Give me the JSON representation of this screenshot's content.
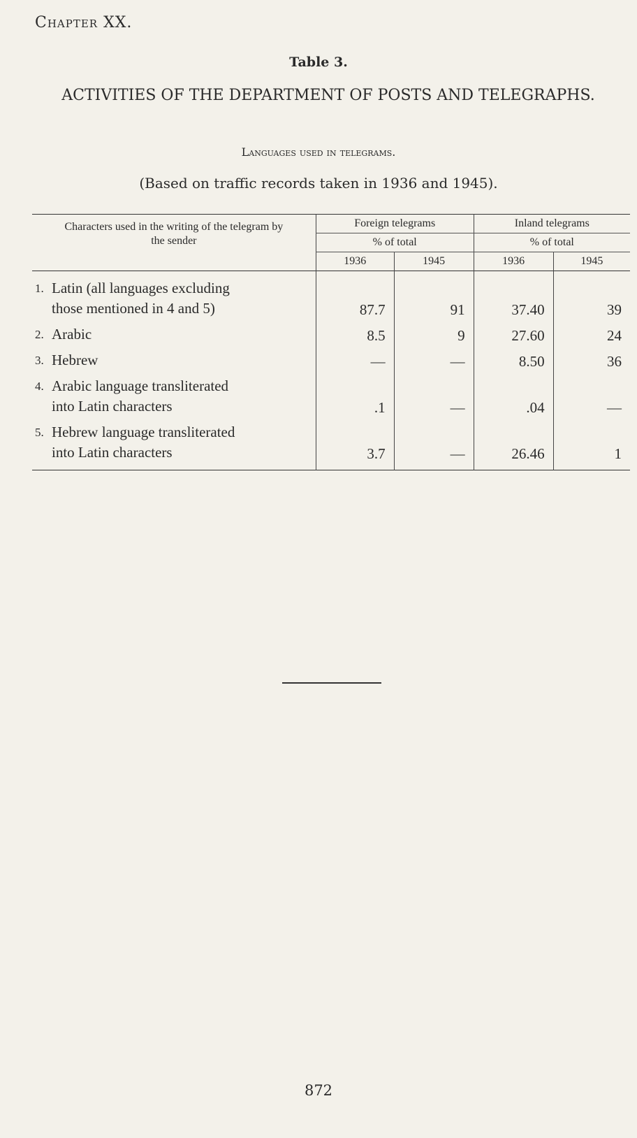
{
  "chapter": "Chapter XX.",
  "table_number": "Table 3.",
  "title": "ACTIVITIES OF THE DEPARTMENT OF POSTS AND TELEGRAPHS.",
  "subtitle": "Languages used in telegrams.",
  "note": "(Based on traffic records taken in 1936 and 1945).",
  "table": {
    "stub_header": "Characters used in the writing of the telegram by the sender",
    "groups": [
      "Foreign telegrams",
      "Inland telegrams"
    ],
    "subheader": "% of total",
    "years": [
      "1936",
      "1945",
      "1936",
      "1945"
    ],
    "rows": [
      {
        "no": "1.",
        "label": "Latin (all languages excluding those mentioned in 4 and 5)",
        "values": [
          "87.7",
          "91",
          "37.40",
          "39"
        ]
      },
      {
        "no": "2.",
        "label": "Arabic",
        "values": [
          "8.5",
          "9",
          "27.60",
          "24"
        ]
      },
      {
        "no": "3.",
        "label": "Hebrew",
        "values": [
          "—",
          "—",
          "8.50",
          "36"
        ]
      },
      {
        "no": "4.",
        "label": "Arabic language transliterated into Latin characters",
        "values": [
          ".1",
          "—",
          ".04",
          "—"
        ]
      },
      {
        "no": "5.",
        "label": "Hebrew language transliterated into Latin characters",
        "values": [
          "3.7",
          "—",
          "26.46",
          "1"
        ]
      }
    ]
  },
  "page_number": "872"
}
